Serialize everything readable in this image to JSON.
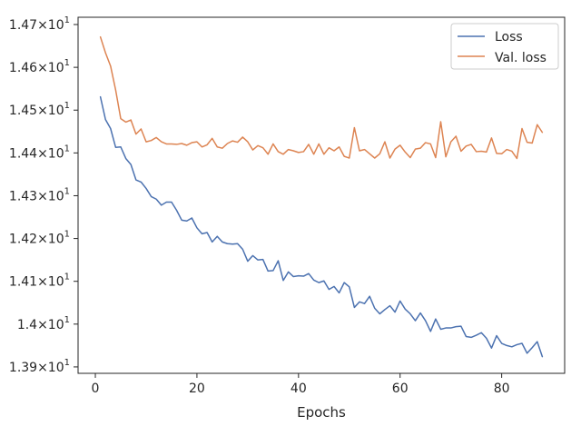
{
  "chart_data": {
    "type": "line",
    "title": "",
    "xlabel": "Epochs",
    "ylabel": "",
    "xlim": [
      -3.4,
      92.4
    ],
    "ylim": [
      13.885,
      14.717
    ],
    "x_ticks": [
      0,
      20,
      40,
      60,
      80
    ],
    "x_tick_labels": [
      "0",
      "20",
      "40",
      "60",
      "80"
    ],
    "y_ticks": [
      13.9,
      14.0,
      14.1,
      14.2,
      14.3,
      14.4,
      14.5,
      14.6,
      14.7
    ],
    "y_tick_labels": [
      {
        "mant": "1.39",
        "exp": "1"
      },
      {
        "mant": "1.4",
        "exp": "1"
      },
      {
        "mant": "1.41",
        "exp": "1"
      },
      {
        "mant": "1.42",
        "exp": "1"
      },
      {
        "mant": "1.43",
        "exp": "1"
      },
      {
        "mant": "1.44",
        "exp": "1"
      },
      {
        "mant": "1.45",
        "exp": "1"
      },
      {
        "mant": "1.46",
        "exp": "1"
      },
      {
        "mant": "1.47",
        "exp": "1"
      }
    ],
    "grid": false,
    "legend_position": "top-right",
    "series": [
      {
        "name": "Loss",
        "color": "#4c72b0",
        "values": [
          14.531,
          14.478,
          14.457,
          14.413,
          14.414,
          14.387,
          14.373,
          14.337,
          14.332,
          14.317,
          14.298,
          14.292,
          14.278,
          14.285,
          14.285,
          14.266,
          14.243,
          14.241,
          14.248,
          14.225,
          14.211,
          14.214,
          14.192,
          14.205,
          14.192,
          14.188,
          14.187,
          14.188,
          14.175,
          14.147,
          14.16,
          14.15,
          14.151,
          14.124,
          14.125,
          14.148,
          14.102,
          14.122,
          14.111,
          14.113,
          14.112,
          14.118,
          14.103,
          14.097,
          14.101,
          14.081,
          14.088,
          14.073,
          14.097,
          14.087,
          14.039,
          14.052,
          14.048,
          14.065,
          14.037,
          14.024,
          14.034,
          14.043,
          14.028,
          14.054,
          14.035,
          14.024,
          14.008,
          14.026,
          14.008,
          13.983,
          14.012,
          13.988,
          13.991,
          13.991,
          13.994,
          13.995,
          13.971,
          13.969,
          13.974,
          13.98,
          13.967,
          13.944,
          13.973,
          13.955,
          13.95,
          13.947,
          13.952,
          13.955,
          13.932,
          13.945,
          13.959,
          13.924
        ]
      },
      {
        "name": "Val. loss",
        "color": "#dd8452",
        "values": [
          14.671,
          14.634,
          14.603,
          14.547,
          14.48,
          14.472,
          14.477,
          14.444,
          14.456,
          14.426,
          14.429,
          14.436,
          14.426,
          14.421,
          14.421,
          14.42,
          14.422,
          14.418,
          14.424,
          14.426,
          14.414,
          14.419,
          14.434,
          14.414,
          14.411,
          14.422,
          14.428,
          14.425,
          14.437,
          14.426,
          14.407,
          14.417,
          14.412,
          14.397,
          14.421,
          14.403,
          14.397,
          14.408,
          14.405,
          14.401,
          14.403,
          14.42,
          14.397,
          14.421,
          14.397,
          14.412,
          14.405,
          14.414,
          14.392,
          14.388,
          14.459,
          14.405,
          14.408,
          14.398,
          14.388,
          14.398,
          14.426,
          14.388,
          14.409,
          14.418,
          14.402,
          14.389,
          14.409,
          14.411,
          14.424,
          14.421,
          14.389,
          14.473,
          14.391,
          14.426,
          14.439,
          14.404,
          14.416,
          14.42,
          14.403,
          14.404,
          14.402,
          14.435,
          14.399,
          14.398,
          14.408,
          14.404,
          14.387,
          14.457,
          14.425,
          14.423,
          14.466,
          14.448
        ]
      }
    ]
  }
}
